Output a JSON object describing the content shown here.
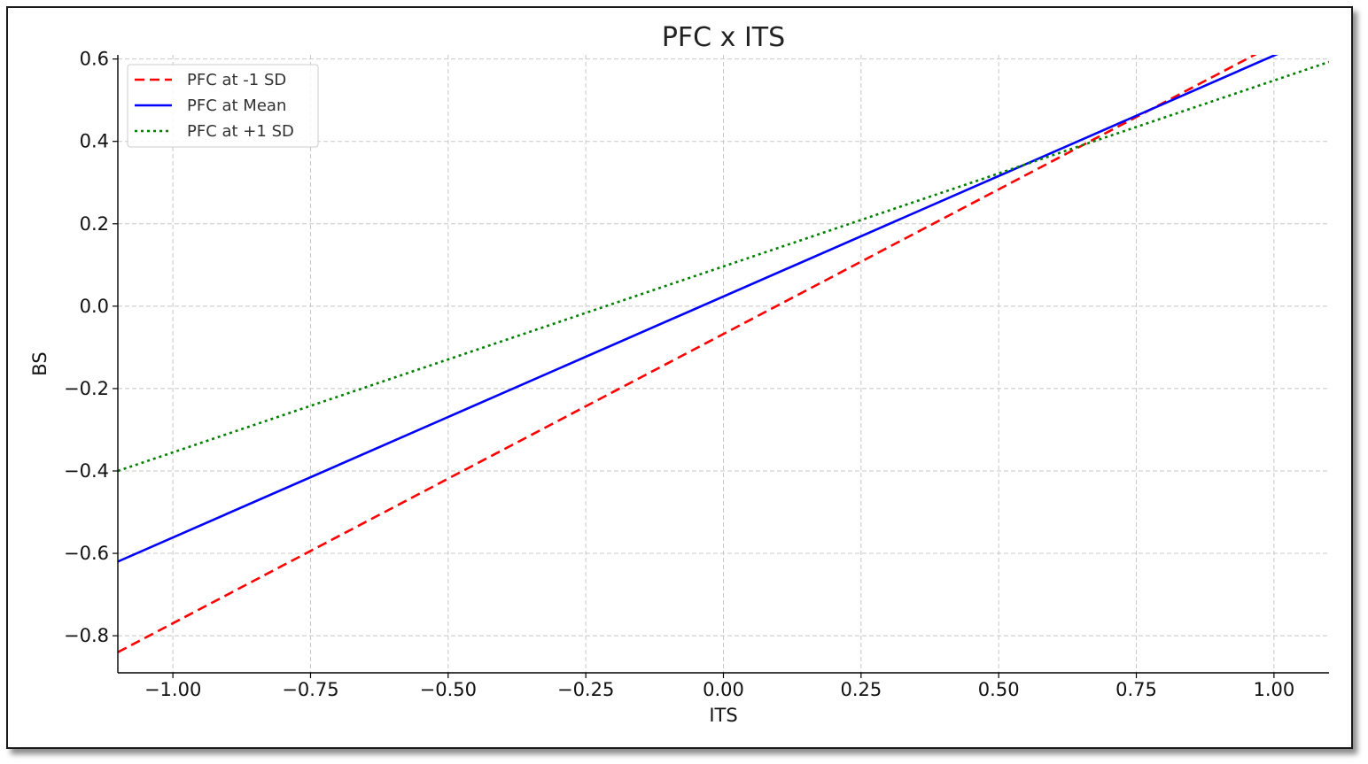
{
  "chart_data": {
    "type": "line",
    "title": "PFC x ITS",
    "xlabel": "ITS",
    "ylabel": "BS",
    "xlim": [
      -1.1,
      1.1
    ],
    "ylim": [
      -0.89,
      0.61
    ],
    "xticks": [
      -1.0,
      -0.75,
      -0.5,
      -0.25,
      0.0,
      0.25,
      0.5,
      0.75,
      1.0
    ],
    "xtick_labels": [
      "−1.00",
      "−0.75",
      "−0.50",
      "−0.25",
      "0.00",
      "0.25",
      "0.50",
      "0.75",
      "1.00"
    ],
    "yticks": [
      -0.8,
      -0.6,
      -0.4,
      -0.2,
      0.0,
      0.2,
      0.4,
      0.6
    ],
    "ytick_labels": [
      "−0.8",
      "−0.6",
      "−0.4",
      "−0.2",
      "0.0",
      "0.2",
      "0.4",
      "0.6"
    ],
    "grid": true,
    "legend_position": "top-left",
    "series": [
      {
        "name": "PFC at -1 SD",
        "color": "#ff0000",
        "style": "dashed",
        "x": [
          -1.1,
          1.1
        ],
        "y": [
          -0.84,
          0.705
        ]
      },
      {
        "name": "PFC at Mean",
        "color": "#0000ff",
        "style": "solid",
        "x": [
          -1.1,
          1.1
        ],
        "y": [
          -0.62,
          0.667
        ]
      },
      {
        "name": "PFC at +1 SD",
        "color": "#008000",
        "style": "dotted",
        "x": [
          -1.1,
          1.1
        ],
        "y": [
          -0.4,
          0.593
        ]
      }
    ]
  }
}
